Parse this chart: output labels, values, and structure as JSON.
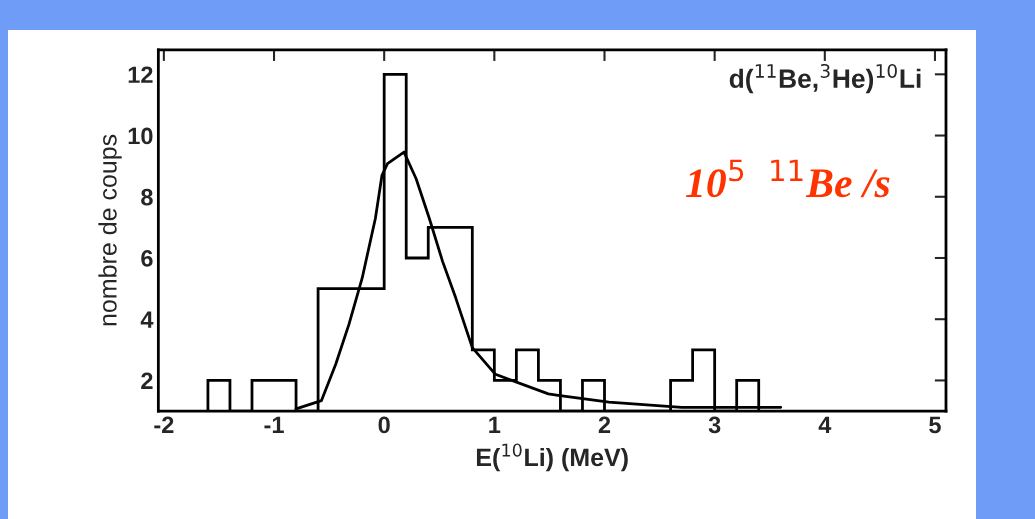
{
  "chart_data": {
    "type": "histogram",
    "xlabel": "E($^{10}$Li) (MeV)",
    "ylabel": "nombre de coups",
    "annotations": [
      "d($^{11}$Be,$^{3}$He)$^{10}$Li",
      "10$^{5}$  $^{11}$Be /s"
    ],
    "bins": [
      -1.6,
      -1.4,
      -1.2,
      -1.0,
      -0.8,
      -0.6,
      -0.4,
      -0.2,
      0.0,
      0.2,
      0.4,
      0.6,
      0.8,
      1.0,
      1.2,
      1.4,
      1.6,
      1.8,
      2.0,
      2.2,
      2.4,
      2.6,
      2.8,
      3.0,
      3.2,
      3.4
    ],
    "values": [
      2,
      1,
      2,
      2,
      1,
      5,
      5,
      5,
      12,
      6,
      7,
      7,
      3,
      2,
      3,
      2,
      1,
      2,
      1,
      1,
      1,
      2,
      3,
      1,
      2
    ],
    "color": "#000000",
    "series": [
      {
        "type": "line",
        "color": "#000000",
        "x": [
          -0.8,
          -0.57,
          -0.44,
          -0.32,
          -0.2,
          -0.08,
          -0.02,
          0.03,
          0.18,
          0.29,
          0.41,
          0.53,
          0.65,
          0.8,
          1.01,
          1.49,
          1.58,
          2.04,
          2.7,
          3.6
        ],
        "values": [
          1.07,
          1.34,
          2.53,
          3.83,
          5.34,
          7.29,
          8.7,
          9.08,
          9.46,
          8.59,
          7.29,
          5.89,
          4.69,
          3.07,
          2.2,
          1.56,
          1.51,
          1.29,
          1.12,
          1.12
        ]
      }
    ],
    "xlim": [
      -2.05,
      5.1
    ],
    "ylim": [
      1,
      12.8
    ],
    "xticks": [
      -2,
      -1,
      0,
      1,
      2,
      3,
      4,
      5
    ],
    "yticks": [
      2,
      4,
      6,
      8,
      10,
      12
    ],
    "grid": false,
    "legend": false
  }
}
